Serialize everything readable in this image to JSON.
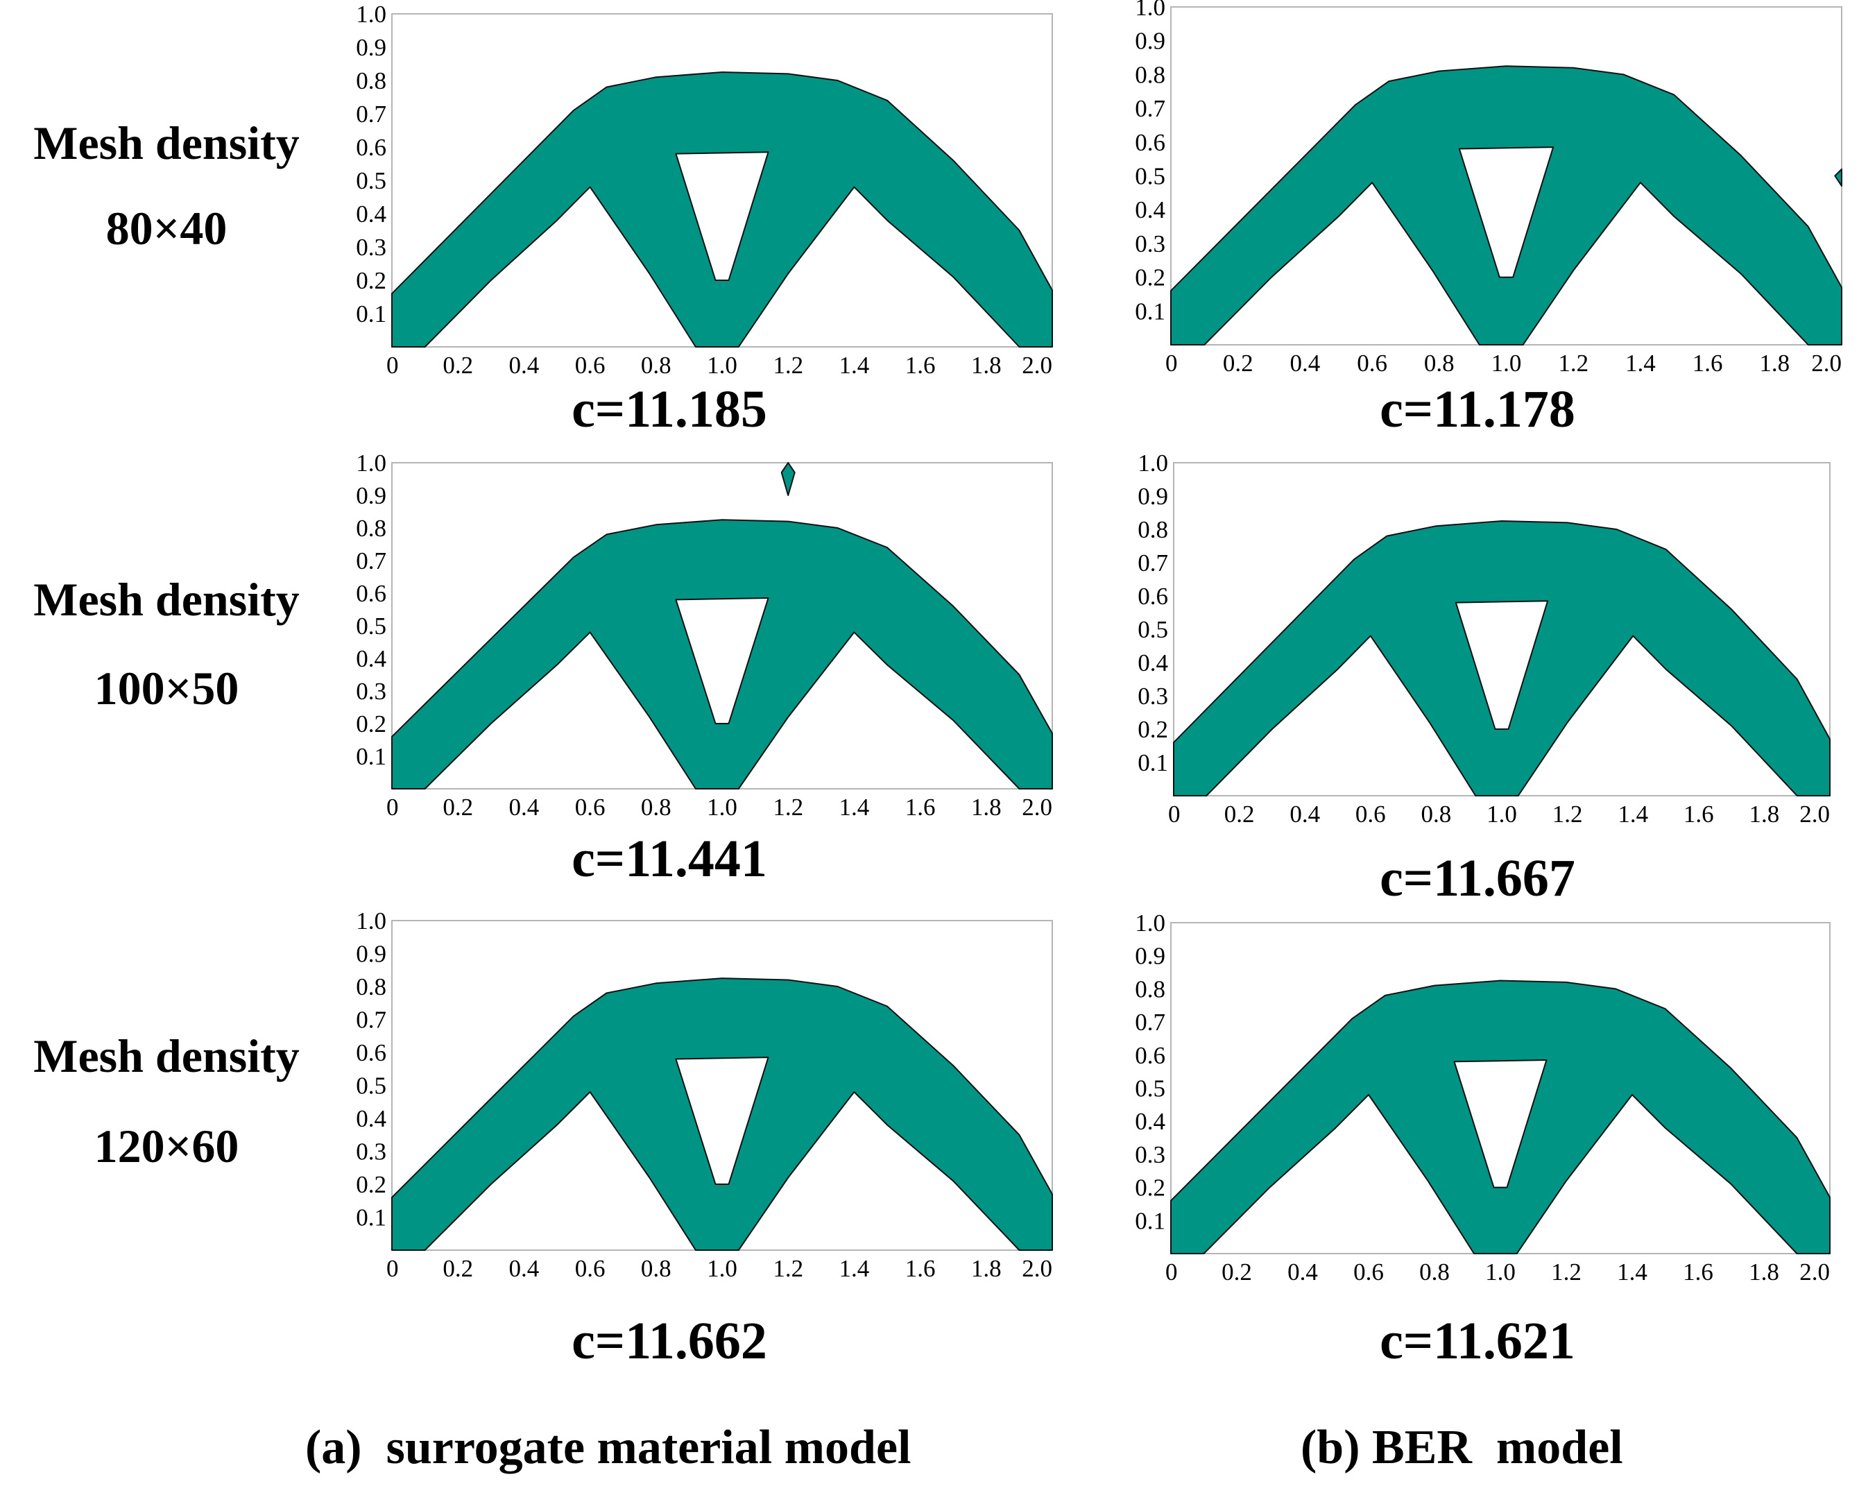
{
  "row_labels": [
    {
      "line1": "Mesh density",
      "line2": "80×40"
    },
    {
      "line1": "Mesh density",
      "line2": "100×50"
    },
    {
      "line1": "Mesh density",
      "line2": "120×60"
    }
  ],
  "x_ticks": [
    "0",
    "0.2",
    "0.4",
    "0.6",
    "0.8",
    "1.0",
    "1.2",
    "1.4",
    "1.6",
    "1.8",
    "2.0"
  ],
  "y_ticks": [
    "0.1",
    "0.2",
    "0.3",
    "0.4",
    "0.5",
    "0.6",
    "0.7",
    "0.8",
    "0.9",
    "1.0"
  ],
  "panels": {
    "a1": {
      "compliance": "c=11.185"
    },
    "b1": {
      "compliance": "c=11.178"
    },
    "a2": {
      "compliance": "c=11.441"
    },
    "b2": {
      "compliance": "c=11.667"
    },
    "a3": {
      "compliance": "c=11.662"
    },
    "b3": {
      "compliance": "c=11.621"
    }
  },
  "captions": {
    "a": "(a)  surrogate material model",
    "b": "(b) BER  model"
  },
  "colors": {
    "material": "#009485",
    "outline": "#111111",
    "frame": "#b5b5b5"
  }
}
